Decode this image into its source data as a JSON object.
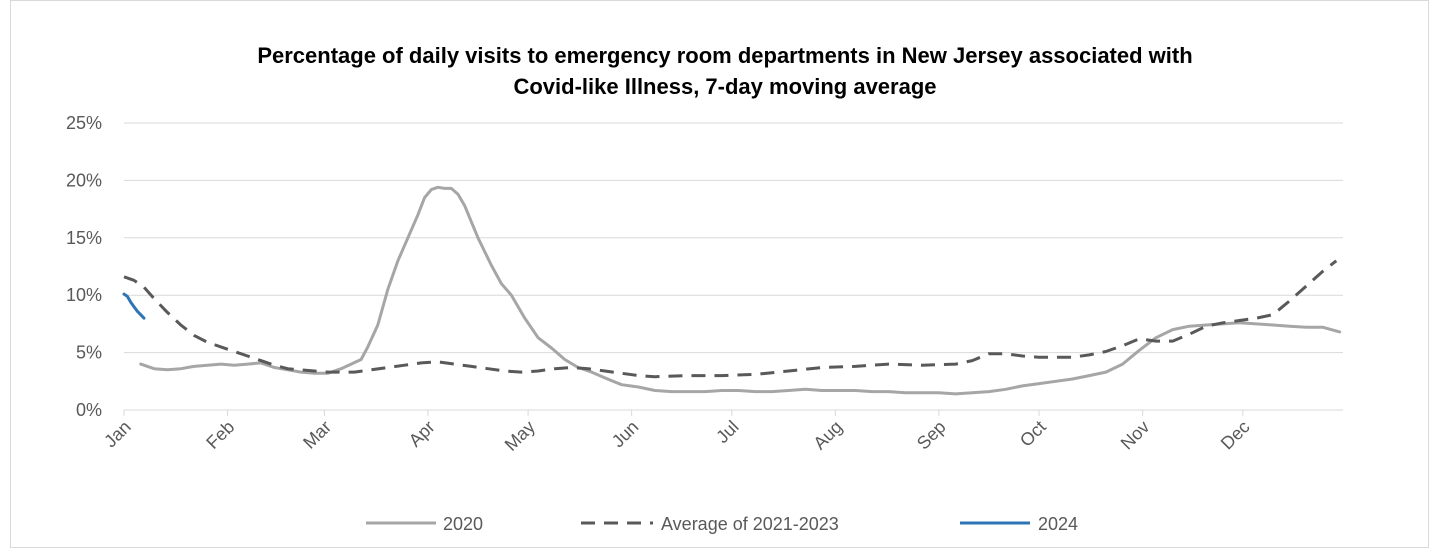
{
  "chart_data": {
    "type": "line",
    "title_lines": [
      "Percentage of daily visits to emergency room departments in New Jersey associated with",
      "Covid-like Illness, 7-day moving average"
    ],
    "xlabel": "",
    "ylabel": "",
    "x_unit": "day of year",
    "xlim": [
      1,
      366
    ],
    "ylim": [
      0,
      25
    ],
    "y_ticks": [
      {
        "value": 0,
        "label": "0%"
      },
      {
        "value": 5,
        "label": "5%"
      },
      {
        "value": 10,
        "label": "10%"
      },
      {
        "value": 15,
        "label": "15%"
      },
      {
        "value": 20,
        "label": "20%"
      },
      {
        "value": 25,
        "label": "25%"
      }
    ],
    "x_ticks": [
      {
        "day": 1,
        "label": "Jan"
      },
      {
        "day": 32,
        "label": "Feb"
      },
      {
        "day": 61,
        "label": "Mar"
      },
      {
        "day": 92,
        "label": "Apr"
      },
      {
        "day": 122,
        "label": "May"
      },
      {
        "day": 153,
        "label": "Jun"
      },
      {
        "day": 183,
        "label": "Jul"
      },
      {
        "day": 214,
        "label": "Aug"
      },
      {
        "day": 245,
        "label": "Sep"
      },
      {
        "day": 275,
        "label": "Oct"
      },
      {
        "day": 306,
        "label": "Nov"
      },
      {
        "day": 336,
        "label": "Dec"
      }
    ],
    "grid": {
      "horizontal": true,
      "vertical": false
    },
    "legend_position": "bottom",
    "series": [
      {
        "name": "2020",
        "color": "#a6a6a6",
        "dash": "solid",
        "x": [
          6,
          10,
          14,
          18,
          22,
          26,
          30,
          34,
          38,
          42,
          46,
          50,
          54,
          58,
          62,
          66,
          69,
          72,
          74,
          77,
          80,
          83,
          86,
          89,
          91,
          93,
          95,
          97,
          99,
          101,
          103,
          105,
          107,
          109,
          111,
          114,
          117,
          121,
          125,
          129,
          133,
          137,
          141,
          145,
          150,
          155,
          160,
          165,
          170,
          175,
          180,
          185,
          190,
          195,
          200,
          205,
          210,
          215,
          220,
          225,
          230,
          235,
          240,
          245,
          250,
          255,
          260,
          265,
          270,
          275,
          280,
          285,
          290,
          295,
          300,
          305,
          310,
          315,
          320,
          325,
          330,
          335,
          340,
          345,
          350,
          355,
          360,
          365
        ],
        "values": [
          4.0,
          3.6,
          3.5,
          3.6,
          3.8,
          3.9,
          4.0,
          3.9,
          4.0,
          4.1,
          3.7,
          3.5,
          3.3,
          3.2,
          3.2,
          3.6,
          4.0,
          4.4,
          5.5,
          7.4,
          10.5,
          13.0,
          15.0,
          17.0,
          18.5,
          19.2,
          19.4,
          19.3,
          19.3,
          18.8,
          17.8,
          16.4,
          15.0,
          13.8,
          12.6,
          11.0,
          10.0,
          8.0,
          6.3,
          5.4,
          4.4,
          3.7,
          3.3,
          2.8,
          2.2,
          2.0,
          1.7,
          1.6,
          1.6,
          1.6,
          1.7,
          1.7,
          1.6,
          1.6,
          1.7,
          1.8,
          1.7,
          1.7,
          1.7,
          1.6,
          1.6,
          1.5,
          1.5,
          1.5,
          1.4,
          1.5,
          1.6,
          1.8,
          2.1,
          2.3,
          2.5,
          2.7,
          3.0,
          3.3,
          4.0,
          5.2,
          6.3,
          7.0,
          7.3,
          7.4,
          7.5,
          7.6,
          7.5,
          7.4,
          7.3,
          7.2,
          7.2,
          6.8
        ]
      },
      {
        "name": "Average of 2021-2023",
        "color": "#595959",
        "dash": "dashed",
        "x": [
          1,
          4,
          7,
          10,
          14,
          18,
          22,
          26,
          30,
          34,
          38,
          42,
          46,
          50,
          54,
          58,
          62,
          66,
          70,
          75,
          80,
          85,
          90,
          95,
          100,
          105,
          110,
          115,
          120,
          125,
          130,
          135,
          140,
          145,
          150,
          155,
          160,
          170,
          180,
          190,
          200,
          210,
          220,
          230,
          240,
          250,
          255,
          260,
          265,
          270,
          275,
          280,
          285,
          290,
          295,
          300,
          305,
          310,
          315,
          320,
          325,
          330,
          335,
          340,
          345,
          350,
          355,
          360,
          364
        ],
        "values": [
          11.6,
          11.3,
          10.7,
          9.7,
          8.5,
          7.4,
          6.5,
          5.9,
          5.5,
          5.1,
          4.7,
          4.3,
          3.9,
          3.6,
          3.5,
          3.4,
          3.3,
          3.3,
          3.3,
          3.5,
          3.7,
          3.9,
          4.1,
          4.2,
          4.0,
          3.8,
          3.6,
          3.4,
          3.3,
          3.4,
          3.6,
          3.7,
          3.6,
          3.4,
          3.2,
          3.0,
          2.9,
          3.0,
          3.0,
          3.1,
          3.4,
          3.7,
          3.8,
          4.0,
          3.9,
          4.0,
          4.3,
          4.9,
          4.9,
          4.7,
          4.6,
          4.6,
          4.6,
          4.8,
          5.1,
          5.6,
          6.2,
          6.0,
          6.0,
          6.6,
          7.3,
          7.6,
          7.8,
          8.0,
          8.3,
          9.5,
          10.8,
          12.1,
          13.0
        ]
      },
      {
        "name": "2024",
        "color": "#2e75b6",
        "dash": "solid",
        "x": [
          1,
          2,
          3,
          4,
          5,
          6,
          7
        ],
        "values": [
          10.1,
          9.9,
          9.4,
          9.0,
          8.6,
          8.3,
          8.0
        ]
      }
    ]
  }
}
